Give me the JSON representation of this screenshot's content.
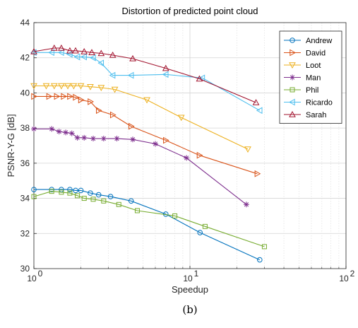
{
  "caption": "(b)",
  "chart_data": {
    "type": "line",
    "title": "Distortion of predicted point cloud",
    "xlabel": "Speedup",
    "ylabel": "PSNR-Y-G [dB]",
    "xscale": "log",
    "xlim": [
      1,
      100
    ],
    "ylim": [
      30,
      44
    ],
    "x_ticks": [
      1,
      10,
      100
    ],
    "x_tick_labels": [
      "10",
      "10",
      "10"
    ],
    "x_tick_exponents": [
      "0",
      "1",
      "2"
    ],
    "y_ticks": [
      30,
      32,
      34,
      36,
      38,
      40,
      42,
      44
    ],
    "y_tick_labels": [
      "30",
      "32",
      "34",
      "36",
      "38",
      "40",
      "42",
      "44"
    ],
    "grid": true,
    "legend_position": "top-right",
    "series": [
      {
        "name": "Andrew",
        "color": "#0072BD",
        "marker": "circle",
        "x": [
          1.0,
          1.3,
          1.5,
          1.7,
          1.85,
          2.0,
          2.3,
          2.6,
          3.1,
          4.2,
          7.0,
          11.6,
          28.0
        ],
        "y": [
          34.5,
          34.5,
          34.5,
          34.5,
          34.45,
          34.45,
          34.3,
          34.2,
          34.1,
          33.85,
          33.1,
          32.05,
          30.5
        ]
      },
      {
        "name": "David",
        "color": "#D95319",
        "marker": "triangle-right",
        "x": [
          1.0,
          1.25,
          1.4,
          1.55,
          1.7,
          1.85,
          2.0,
          2.3,
          2.6,
          3.2,
          4.2,
          7.0,
          11.5,
          27.0
        ],
        "y": [
          39.8,
          39.8,
          39.8,
          39.8,
          39.8,
          39.75,
          39.6,
          39.5,
          39.0,
          38.75,
          38.1,
          37.3,
          36.45,
          35.4
        ]
      },
      {
        "name": "Loot",
        "color": "#EDB120",
        "marker": "triangle-down",
        "x": [
          1.0,
          1.2,
          1.35,
          1.5,
          1.65,
          1.8,
          2.0,
          2.3,
          2.7,
          3.3,
          5.3,
          8.8,
          23.5
        ],
        "y": [
          40.4,
          40.4,
          40.4,
          40.4,
          40.4,
          40.4,
          40.4,
          40.35,
          40.3,
          40.2,
          39.6,
          38.6,
          36.8
        ]
      },
      {
        "name": "Man",
        "color": "#7E2F8E",
        "marker": "asterisk",
        "x": [
          1.0,
          1.3,
          1.45,
          1.6,
          1.75,
          1.9,
          2.1,
          2.4,
          2.8,
          3.4,
          4.3,
          6.0,
          9.5,
          23.0
        ],
        "y": [
          37.95,
          37.95,
          37.8,
          37.75,
          37.7,
          37.45,
          37.45,
          37.4,
          37.4,
          37.4,
          37.35,
          37.1,
          36.3,
          33.65
        ]
      },
      {
        "name": "Phil",
        "color": "#77AC30",
        "marker": "square",
        "x": [
          1.0,
          1.3,
          1.5,
          1.7,
          1.9,
          2.1,
          2.4,
          2.8,
          3.5,
          4.6,
          8.0,
          12.5,
          30.0
        ],
        "y": [
          34.1,
          34.4,
          34.35,
          34.3,
          34.15,
          34.0,
          33.95,
          33.85,
          33.65,
          33.3,
          33.0,
          32.4,
          31.25
        ]
      },
      {
        "name": "Ricardo",
        "color": "#4DBEEE",
        "marker": "triangle-left",
        "x": [
          1.0,
          1.3,
          1.5,
          1.7,
          1.9,
          2.1,
          2.4,
          2.7,
          3.2,
          4.2,
          7.0,
          12.0,
          28.0
        ],
        "y": [
          42.3,
          42.3,
          42.3,
          42.2,
          42.05,
          42.05,
          42.0,
          41.7,
          41.0,
          41.0,
          41.05,
          40.85,
          39.0
        ]
      },
      {
        "name": "Sarah",
        "color": "#A2142F",
        "marker": "triangle-up",
        "x": [
          1.0,
          1.35,
          1.5,
          1.7,
          1.85,
          2.1,
          2.35,
          2.7,
          3.2,
          4.3,
          7.0,
          11.5,
          26.5
        ],
        "y": [
          42.35,
          42.55,
          42.55,
          42.4,
          42.4,
          42.35,
          42.3,
          42.25,
          42.15,
          41.95,
          41.4,
          40.8,
          39.45
        ]
      }
    ]
  }
}
